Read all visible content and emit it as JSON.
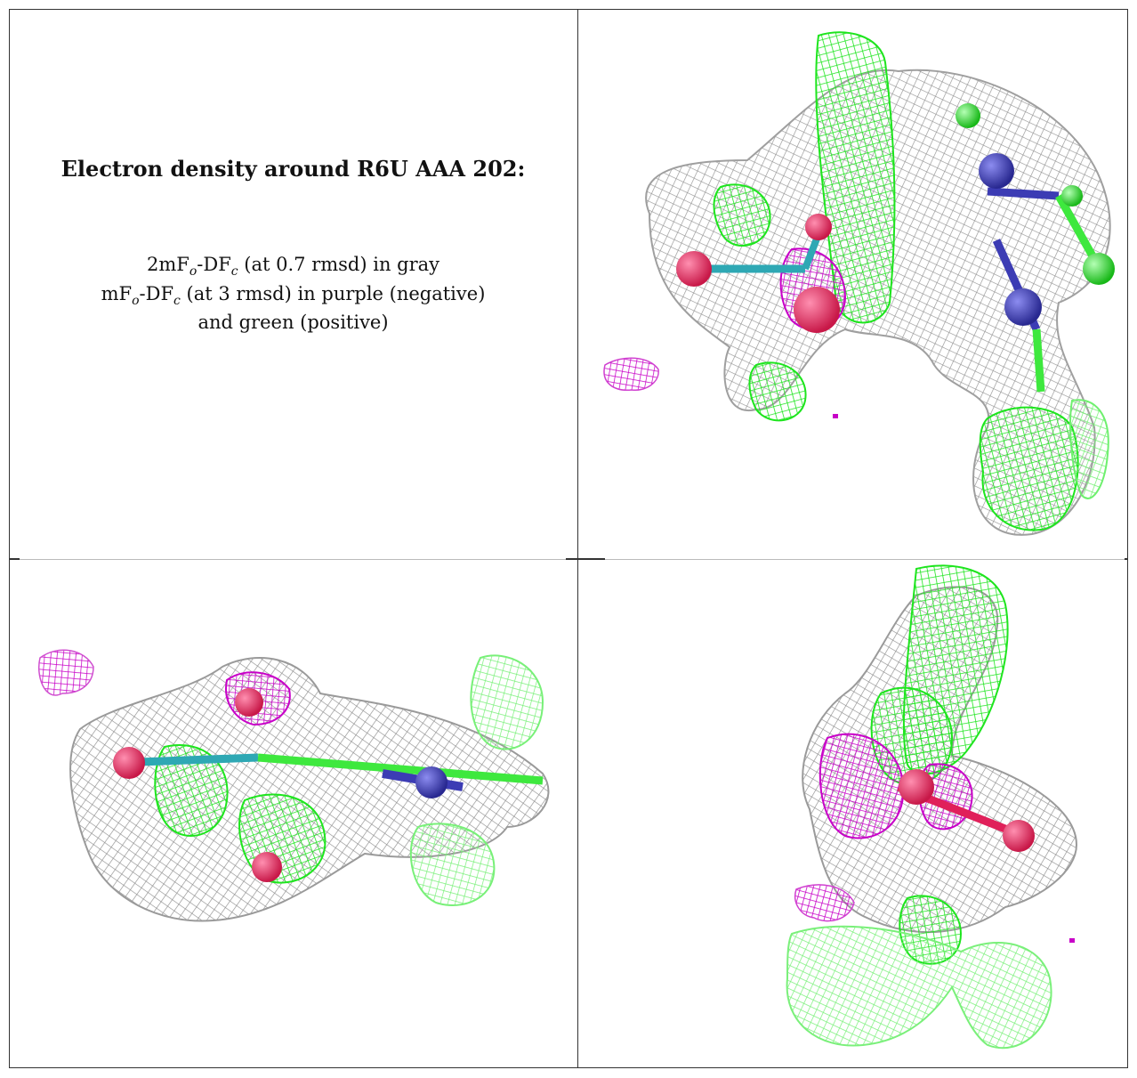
{
  "caption": {
    "title": "Electron density around R6U AAA 202:",
    "line1_pre": "2mF",
    "line1_sub1": "o",
    "line1_mid": "-DF",
    "line1_sub2": "c",
    "line1_post": " (at 0.7 rmsd) in gray",
    "line2_pre": "mF",
    "line2_sub1": "o",
    "line2_mid": "-DF",
    "line2_sub2": "c",
    "line2_post": " (at 3 rmsd) in purple (negative)",
    "line3": "and green (positive)"
  },
  "colors": {
    "mesh_gray": "#9a9a9a",
    "positive_green": "#1ee51e",
    "negative_purple": "#c800c8",
    "oxygen_red": "#e0205a",
    "nitrogen_blue": "#3c3cb4",
    "carbon_cyan": "#2ea8b4",
    "carbon_green": "#3ee83e"
  },
  "views": [
    {
      "name": "view-top-right"
    },
    {
      "name": "view-bottom-left"
    },
    {
      "name": "view-bottom-right"
    }
  ]
}
